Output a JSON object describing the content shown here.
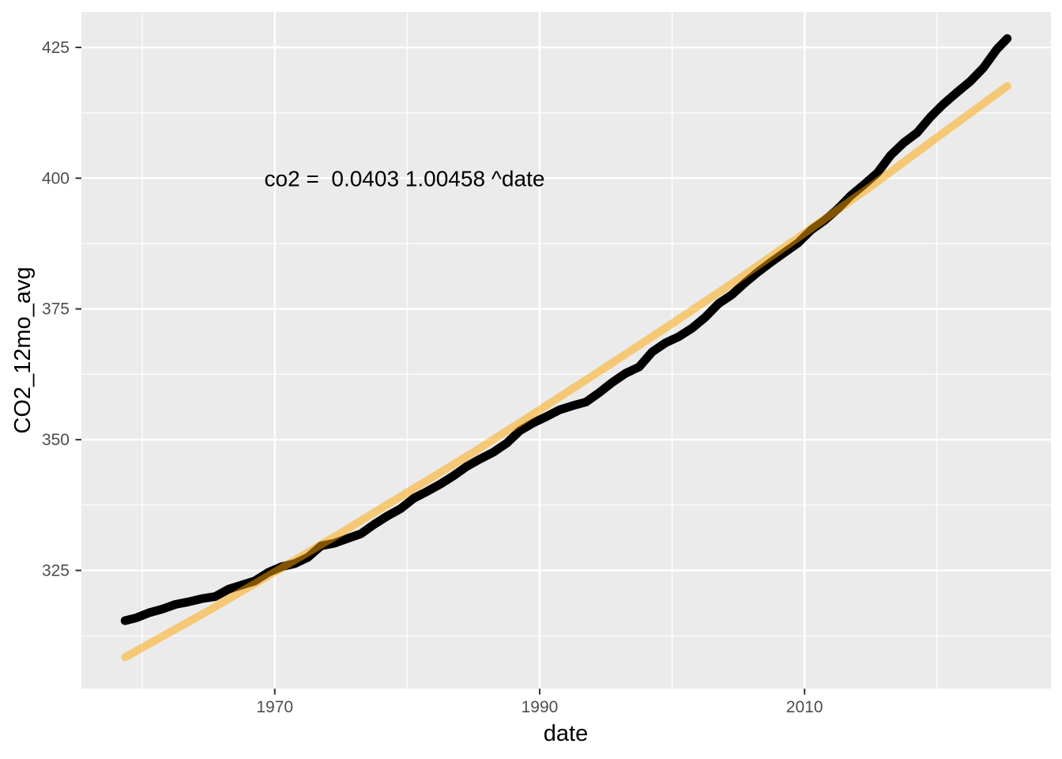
{
  "figure": {
    "background_color": "#FFFFFF",
    "panel_color": "#EBEBEB",
    "grid_color": "#FFFFFF",
    "tick_mark_color": "#333333",
    "tick_label_color": "#4D4D4D",
    "axis_title_color": "#000000"
  },
  "chart_data": {
    "type": "line",
    "title": "",
    "xlabel": "date",
    "ylabel": "CO2_12mo_avg",
    "annotation": {
      "text": "co2 =  0.0403 1.00458 ^date",
      "x": 1979.8,
      "y": 400
    },
    "xlim": [
      1955.4,
      2028.6
    ],
    "ylim": [
      302.4,
      431.8
    ],
    "x_ticks": [
      1970,
      1990,
      2010
    ],
    "x_minor_ticks": [
      1960,
      1980,
      2000,
      2020
    ],
    "y_ticks": [
      325,
      350,
      375,
      400,
      425
    ],
    "y_minor_ticks": [
      312.5,
      337.5,
      362.5,
      387.5,
      412.5
    ],
    "grid": true,
    "legend": "none",
    "series": [
      {
        "name": "CO2_12mo_avg",
        "color": "#000000",
        "opacity": 1,
        "stroke_width": 11,
        "points": [
          [
            1958.7,
            315.4
          ],
          [
            1959.5,
            315.9
          ],
          [
            1960.5,
            316.9
          ],
          [
            1961.5,
            317.6
          ],
          [
            1962.5,
            318.5
          ],
          [
            1963.5,
            319.0
          ],
          [
            1964.5,
            319.6
          ],
          [
            1965.5,
            320.0
          ],
          [
            1966.5,
            321.4
          ],
          [
            1967.5,
            322.2
          ],
          [
            1968.5,
            323.0
          ],
          [
            1969.5,
            324.6
          ],
          [
            1970.5,
            325.7
          ],
          [
            1971.5,
            326.3
          ],
          [
            1972.5,
            327.5
          ],
          [
            1973.5,
            329.7
          ],
          [
            1974.5,
            330.2
          ],
          [
            1975.5,
            331.1
          ],
          [
            1976.5,
            332.0
          ],
          [
            1977.5,
            333.8
          ],
          [
            1978.5,
            335.4
          ],
          [
            1979.5,
            336.8
          ],
          [
            1980.5,
            338.8
          ],
          [
            1981.5,
            340.1
          ],
          [
            1982.5,
            341.5
          ],
          [
            1983.5,
            343.1
          ],
          [
            1984.5,
            344.9
          ],
          [
            1985.5,
            346.3
          ],
          [
            1986.5,
            347.6
          ],
          [
            1987.5,
            349.3
          ],
          [
            1988.5,
            351.7
          ],
          [
            1989.5,
            353.2
          ],
          [
            1990.5,
            354.4
          ],
          [
            1991.5,
            355.7
          ],
          [
            1992.5,
            356.5
          ],
          [
            1993.5,
            357.2
          ],
          [
            1994.5,
            359.0
          ],
          [
            1995.5,
            361.0
          ],
          [
            1996.5,
            362.7
          ],
          [
            1997.5,
            363.9
          ],
          [
            1998.5,
            366.8
          ],
          [
            1999.5,
            368.5
          ],
          [
            2000.5,
            369.7
          ],
          [
            2001.5,
            371.3
          ],
          [
            2002.5,
            373.4
          ],
          [
            2003.5,
            376.0
          ],
          [
            2004.5,
            377.7
          ],
          [
            2005.5,
            380.0
          ],
          [
            2006.5,
            382.1
          ],
          [
            2007.5,
            384.0
          ],
          [
            2008.5,
            385.8
          ],
          [
            2009.5,
            387.6
          ],
          [
            2010.5,
            390.1
          ],
          [
            2011.5,
            391.9
          ],
          [
            2012.5,
            394.1
          ],
          [
            2013.5,
            396.7
          ],
          [
            2014.5,
            398.8
          ],
          [
            2015.5,
            401.0
          ],
          [
            2016.5,
            404.4
          ],
          [
            2017.5,
            406.8
          ],
          [
            2018.5,
            408.7
          ],
          [
            2019.5,
            411.7
          ],
          [
            2020.5,
            414.2
          ],
          [
            2021.5,
            416.4
          ],
          [
            2022.5,
            418.5
          ],
          [
            2023.5,
            421.1
          ],
          [
            2024.5,
            424.6
          ],
          [
            2025.3,
            426.7
          ]
        ]
      },
      {
        "name": "exponential_fit",
        "color": "#FFA500",
        "opacity": 0.5,
        "stroke_width": 10,
        "points": [
          [
            1958.7,
            308.4
          ],
          [
            1965,
            317.3
          ],
          [
            1970,
            324.7
          ],
          [
            1975,
            332.2
          ],
          [
            1980,
            339.9
          ],
          [
            1985,
            347.6
          ],
          [
            1990,
            355.7
          ],
          [
            1995,
            363.9
          ],
          [
            2000,
            372.2
          ],
          [
            2005,
            380.7
          ],
          [
            2010,
            389.5
          ],
          [
            2015,
            398.4
          ],
          [
            2020,
            407.8
          ],
          [
            2025.3,
            417.6
          ]
        ]
      }
    ]
  }
}
